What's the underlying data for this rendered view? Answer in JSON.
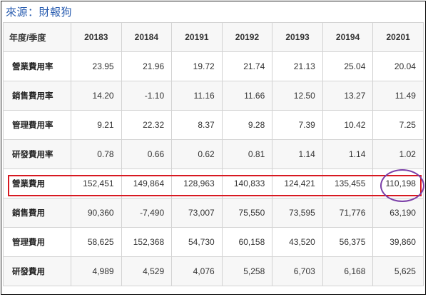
{
  "source_label": "來源：財報狗",
  "table": {
    "corner_header": "年度/季度",
    "columns": [
      "20183",
      "20184",
      "20191",
      "20192",
      "20193",
      "20194",
      "20201"
    ],
    "rows": [
      {
        "label": "營業費用率",
        "values": [
          "23.95",
          "21.96",
          "19.72",
          "21.74",
          "21.13",
          "25.04",
          "20.04"
        ]
      },
      {
        "label": "銷售費用率",
        "values": [
          "14.20",
          "-1.10",
          "11.16",
          "11.66",
          "12.50",
          "13.27",
          "11.49"
        ]
      },
      {
        "label": "管理費用率",
        "values": [
          "9.21",
          "22.32",
          "8.37",
          "9.28",
          "7.39",
          "10.42",
          "7.25"
        ]
      },
      {
        "label": "研發費用率",
        "values": [
          "0.78",
          "0.66",
          "0.62",
          "0.81",
          "1.14",
          "1.14",
          "1.02"
        ]
      },
      {
        "label": "營業費用",
        "values": [
          "152,451",
          "149,864",
          "128,963",
          "140,833",
          "124,421",
          "135,455",
          "110,198"
        ]
      },
      {
        "label": "銷售費用",
        "values": [
          "90,360",
          "-7,490",
          "73,007",
          "75,550",
          "73,595",
          "71,776",
          "63,190"
        ]
      },
      {
        "label": "管理費用",
        "values": [
          "58,625",
          "152,368",
          "54,730",
          "60,158",
          "43,520",
          "56,375",
          "39,860"
        ]
      },
      {
        "label": "研發費用",
        "values": [
          "4,989",
          "4,529",
          "4,076",
          "5,258",
          "6,703",
          "6,168",
          "5,625"
        ]
      }
    ]
  },
  "annotations": {
    "highlight_row_color": "#d71921",
    "circle_color": "#7b3fa8"
  }
}
